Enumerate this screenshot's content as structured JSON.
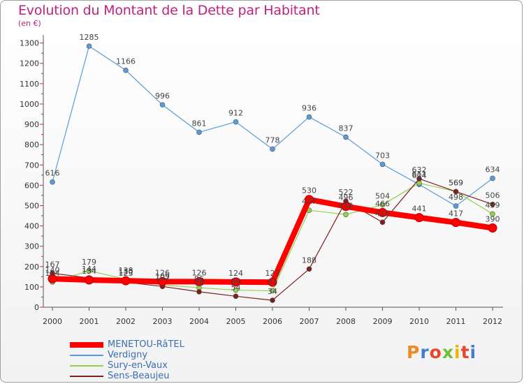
{
  "title": "Evolution du Montant de la Dette par Habitant",
  "unit": "(en €)",
  "brand": "Proxiti",
  "chart_data": {
    "type": "line",
    "x": [
      "2000",
      "2001",
      "2002",
      "2003",
      "2004",
      "2005",
      "2006",
      "2007",
      "2008",
      "2009",
      "2010",
      "2011",
      "2012"
    ],
    "yticks": [
      0,
      100,
      200,
      300,
      400,
      500,
      600,
      700,
      800,
      900,
      1000,
      1100,
      1200,
      1300
    ],
    "ylim": [
      0,
      1340
    ],
    "grid": false,
    "legend_position": "bottom-left",
    "series": [
      {
        "name": "MENETOU-RâTEL",
        "color": "#ff0000",
        "values": [
          140,
          134,
          130,
          126,
          126,
          124,
          123,
          530,
          496,
          466,
          441,
          417,
          390
        ]
      },
      {
        "name": "Verdigny",
        "color": "#5b9bd5",
        "values": [
          616,
          1285,
          1166,
          996,
          861,
          912,
          778,
          936,
          837,
          703,
          604,
          498,
          634
        ]
      },
      {
        "name": "Sury-en-Vaux",
        "color": "#92d050",
        "values": [
          124,
          179,
          138,
          109,
          96,
          84,
          81,
          477,
          456,
          504,
          611,
          569,
          459
        ]
      },
      {
        "name": "Sens-Beaujeu",
        "color": "#7b1f1f",
        "values": [
          167,
          144,
          123,
          102,
          76,
          54,
          34,
          188,
          522,
          418,
          632,
          569,
          506
        ]
      }
    ]
  }
}
